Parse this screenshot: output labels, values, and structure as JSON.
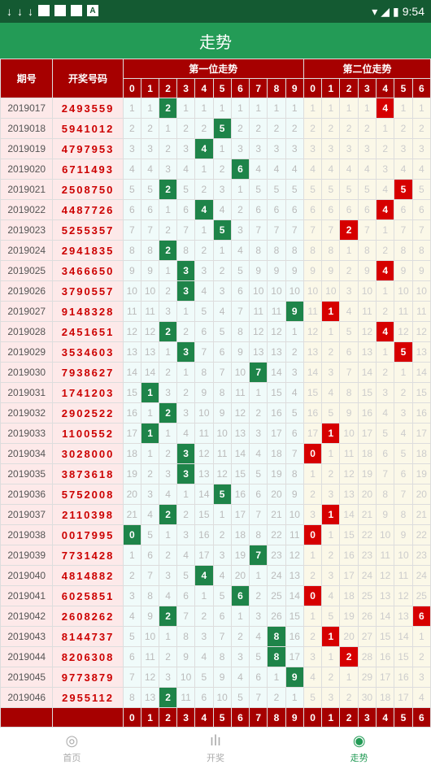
{
  "statusbar": {
    "time": "9:54"
  },
  "title": "走势",
  "headers": {
    "period": "期号",
    "code": "开奖号码",
    "group1": "第一位走势",
    "group2": "第二位走势",
    "nums": [
      "0",
      "1",
      "2",
      "3",
      "4",
      "5",
      "6",
      "7",
      "8",
      "9",
      "0",
      "1",
      "2",
      "3",
      "4",
      "5",
      "6"
    ]
  },
  "footer_nums": [
    "0",
    "1",
    "2",
    "3",
    "4",
    "5",
    "6",
    "7",
    "8",
    "9",
    "0",
    "1",
    "2",
    "3",
    "4",
    "5",
    "6"
  ],
  "rows": [
    {
      "period": "2019017",
      "code": "2493559",
      "g1": [
        "1",
        "1",
        "2",
        "1",
        "1",
        "1",
        "1",
        "1",
        "1",
        "1"
      ],
      "hit1": 2,
      "g2": [
        "1",
        "1",
        "1",
        "1",
        "4",
        "1",
        "1"
      ],
      "hit2": 4
    },
    {
      "period": "2019018",
      "code": "5941012",
      "g1": [
        "2",
        "2",
        "1",
        "2",
        "2",
        "5",
        "2",
        "2",
        "2",
        "2"
      ],
      "hit1": 5,
      "g2": [
        "2",
        "2",
        "2",
        "2",
        "1",
        "2",
        "2"
      ],
      "hit2": -1
    },
    {
      "period": "2019019",
      "code": "4797953",
      "g1": [
        "3",
        "3",
        "2",
        "3",
        "4",
        "1",
        "3",
        "3",
        "3",
        "3"
      ],
      "hit1": 4,
      "g2": [
        "3",
        "3",
        "3",
        "3",
        "2",
        "3",
        "3"
      ],
      "hit2": -1
    },
    {
      "period": "2019020",
      "code": "6711493",
      "g1": [
        "4",
        "4",
        "3",
        "4",
        "1",
        "2",
        "6",
        "4",
        "4",
        "4"
      ],
      "hit1": 6,
      "g2": [
        "4",
        "4",
        "4",
        "4",
        "3",
        "4",
        "4"
      ],
      "hit2": -1
    },
    {
      "period": "2019021",
      "code": "2508750",
      "g1": [
        "5",
        "5",
        "2",
        "5",
        "2",
        "3",
        "1",
        "5",
        "5",
        "5"
      ],
      "hit1": 2,
      "g2": [
        "5",
        "5",
        "5",
        "5",
        "4",
        "5",
        "5"
      ],
      "hit2": 5
    },
    {
      "period": "2019022",
      "code": "4487726",
      "g1": [
        "6",
        "6",
        "1",
        "6",
        "4",
        "4",
        "2",
        "6",
        "6",
        "6"
      ],
      "hit1": 4,
      "g2": [
        "6",
        "6",
        "6",
        "6",
        "4",
        "6",
        "6"
      ],
      "hit2": 4
    },
    {
      "period": "2019023",
      "code": "5255357",
      "g1": [
        "7",
        "7",
        "2",
        "7",
        "1",
        "5",
        "3",
        "7",
        "7",
        "7"
      ],
      "hit1": 5,
      "g2": [
        "7",
        "7",
        "2",
        "7",
        "1",
        "7",
        "7"
      ],
      "hit2": 2
    },
    {
      "period": "2019024",
      "code": "2941835",
      "g1": [
        "8",
        "8",
        "2",
        "8",
        "2",
        "1",
        "4",
        "8",
        "8",
        "8"
      ],
      "hit1": 2,
      "g2": [
        "8",
        "8",
        "1",
        "8",
        "2",
        "8",
        "8"
      ],
      "hit2": -1
    },
    {
      "period": "2019025",
      "code": "3466650",
      "g1": [
        "9",
        "9",
        "1",
        "3",
        "3",
        "2",
        "5",
        "9",
        "9",
        "9"
      ],
      "hit1": 3,
      "g2": [
        "9",
        "9",
        "2",
        "9",
        "4",
        "9",
        "9"
      ],
      "hit2": 4
    },
    {
      "period": "2019026",
      "code": "3790557",
      "g1": [
        "10",
        "10",
        "2",
        "3",
        "4",
        "3",
        "6",
        "10",
        "10",
        "10"
      ],
      "hit1": 3,
      "g2": [
        "10",
        "10",
        "3",
        "10",
        "1",
        "10",
        "10"
      ],
      "hit2": -1
    },
    {
      "period": "2019027",
      "code": "9148328",
      "g1": [
        "11",
        "11",
        "3",
        "1",
        "5",
        "4",
        "7",
        "11",
        "11",
        "9"
      ],
      "hit1": 9,
      "g2": [
        "11",
        "1",
        "4",
        "11",
        "2",
        "11",
        "11"
      ],
      "hit2": 1
    },
    {
      "period": "2019028",
      "code": "2451651",
      "g1": [
        "12",
        "12",
        "2",
        "2",
        "6",
        "5",
        "8",
        "12",
        "12",
        "1"
      ],
      "hit1": 2,
      "g2": [
        "12",
        "1",
        "5",
        "12",
        "4",
        "12",
        "12"
      ],
      "hit2": 4
    },
    {
      "period": "2019029",
      "code": "3534603",
      "g1": [
        "13",
        "13",
        "1",
        "3",
        "7",
        "6",
        "9",
        "13",
        "13",
        "2"
      ],
      "hit1": 3,
      "g2": [
        "13",
        "2",
        "6",
        "13",
        "1",
        "5",
        "13"
      ],
      "hit2": 5
    },
    {
      "period": "2019030",
      "code": "7938627",
      "g1": [
        "14",
        "14",
        "2",
        "1",
        "8",
        "7",
        "10",
        "7",
        "14",
        "3"
      ],
      "hit1": 7,
      "g2": [
        "14",
        "3",
        "7",
        "14",
        "2",
        "1",
        "14"
      ],
      "hit2": -1
    },
    {
      "period": "2019031",
      "code": "1741203",
      "g1": [
        "15",
        "1",
        "3",
        "2",
        "9",
        "8",
        "11",
        "1",
        "15",
        "4"
      ],
      "hit1": 1,
      "g2": [
        "15",
        "4",
        "8",
        "15",
        "3",
        "2",
        "15"
      ],
      "hit2": -1
    },
    {
      "period": "2019032",
      "code": "2902522",
      "g1": [
        "16",
        "1",
        "2",
        "3",
        "10",
        "9",
        "12",
        "2",
        "16",
        "5"
      ],
      "hit1": 2,
      "g2": [
        "16",
        "5",
        "9",
        "16",
        "4",
        "3",
        "16"
      ],
      "hit2": -1
    },
    {
      "period": "2019033",
      "code": "1100552",
      "g1": [
        "17",
        "1",
        "1",
        "4",
        "11",
        "10",
        "13",
        "3",
        "17",
        "6"
      ],
      "hit1": 1,
      "g2": [
        "17",
        "1",
        "10",
        "17",
        "5",
        "4",
        "17"
      ],
      "hit2": 1
    },
    {
      "period": "2019034",
      "code": "3028000",
      "g1": [
        "18",
        "1",
        "2",
        "3",
        "12",
        "11",
        "14",
        "4",
        "18",
        "7"
      ],
      "hit1": 3,
      "g2": [
        "0",
        "1",
        "11",
        "18",
        "6",
        "5",
        "18"
      ],
      "hit2": 0
    },
    {
      "period": "2019035",
      "code": "3873618",
      "g1": [
        "19",
        "2",
        "3",
        "3",
        "13",
        "12",
        "15",
        "5",
        "19",
        "8"
      ],
      "hit1": 3,
      "g2": [
        "1",
        "2",
        "12",
        "19",
        "7",
        "6",
        "19"
      ],
      "hit2": -1
    },
    {
      "period": "2019036",
      "code": "5752008",
      "g1": [
        "20",
        "3",
        "4",
        "1",
        "14",
        "5",
        "16",
        "6",
        "20",
        "9"
      ],
      "hit1": 5,
      "g2": [
        "2",
        "3",
        "13",
        "20",
        "8",
        "7",
        "20"
      ],
      "hit2": -1
    },
    {
      "period": "2019037",
      "code": "2110398",
      "g1": [
        "21",
        "4",
        "2",
        "2",
        "15",
        "1",
        "17",
        "7",
        "21",
        "10"
      ],
      "hit1": 2,
      "g2": [
        "3",
        "1",
        "14",
        "21",
        "9",
        "8",
        "21"
      ],
      "hit2": 1
    },
    {
      "period": "2019038",
      "code": "0017995",
      "g1": [
        "0",
        "5",
        "1",
        "3",
        "16",
        "2",
        "18",
        "8",
        "22",
        "11"
      ],
      "hit1": 0,
      "g2": [
        "0",
        "1",
        "15",
        "22",
        "10",
        "9",
        "22"
      ],
      "hit2": 0
    },
    {
      "period": "2019039",
      "code": "7731428",
      "g1": [
        "1",
        "6",
        "2",
        "4",
        "17",
        "3",
        "19",
        "7",
        "23",
        "12"
      ],
      "hit1": 7,
      "g2": [
        "1",
        "2",
        "16",
        "23",
        "11",
        "10",
        "23"
      ],
      "hit2": -1
    },
    {
      "period": "2019040",
      "code": "4814882",
      "g1": [
        "2",
        "7",
        "3",
        "5",
        "4",
        "4",
        "20",
        "1",
        "24",
        "13"
      ],
      "hit1": 4,
      "g2": [
        "2",
        "3",
        "17",
        "24",
        "12",
        "11",
        "24"
      ],
      "hit2": -1
    },
    {
      "period": "2019041",
      "code": "6025851",
      "g1": [
        "3",
        "8",
        "4",
        "6",
        "1",
        "5",
        "6",
        "2",
        "25",
        "14"
      ],
      "hit1": 6,
      "g2": [
        "0",
        "4",
        "18",
        "25",
        "13",
        "12",
        "25"
      ],
      "hit2": 0
    },
    {
      "period": "2019042",
      "code": "2608262",
      "g1": [
        "4",
        "9",
        "2",
        "7",
        "2",
        "6",
        "1",
        "3",
        "26",
        "15"
      ],
      "hit1": 2,
      "g2": [
        "1",
        "5",
        "19",
        "26",
        "14",
        "13",
        "6"
      ],
      "hit2": 6
    },
    {
      "period": "2019043",
      "code": "8144737",
      "g1": [
        "5",
        "10",
        "1",
        "8",
        "3",
        "7",
        "2",
        "4",
        "8",
        "16"
      ],
      "hit1": 8,
      "g2": [
        "2",
        "1",
        "20",
        "27",
        "15",
        "14",
        "1"
      ],
      "hit2": 1
    },
    {
      "period": "2019044",
      "code": "8206308",
      "g1": [
        "6",
        "11",
        "2",
        "9",
        "4",
        "8",
        "3",
        "5",
        "8",
        "17"
      ],
      "hit1": 8,
      "g2": [
        "3",
        "1",
        "2",
        "28",
        "16",
        "15",
        "2"
      ],
      "hit2": 2
    },
    {
      "period": "2019045",
      "code": "9773879",
      "g1": [
        "7",
        "12",
        "3",
        "10",
        "5",
        "9",
        "4",
        "6",
        "1",
        "9"
      ],
      "hit1": 9,
      "g2": [
        "4",
        "2",
        "1",
        "29",
        "17",
        "16",
        "3"
      ],
      "hit2": -1
    },
    {
      "period": "2019046",
      "code": "2955112",
      "g1": [
        "8",
        "13",
        "2",
        "11",
        "6",
        "10",
        "5",
        "7",
        "2",
        "1"
      ],
      "hit1": 2,
      "g2": [
        "5",
        "3",
        "2",
        "30",
        "18",
        "17",
        "4"
      ],
      "hit2": -1
    }
  ],
  "nav": {
    "home": "首页",
    "kaijiang": "开奖",
    "zoushi": "走势"
  }
}
